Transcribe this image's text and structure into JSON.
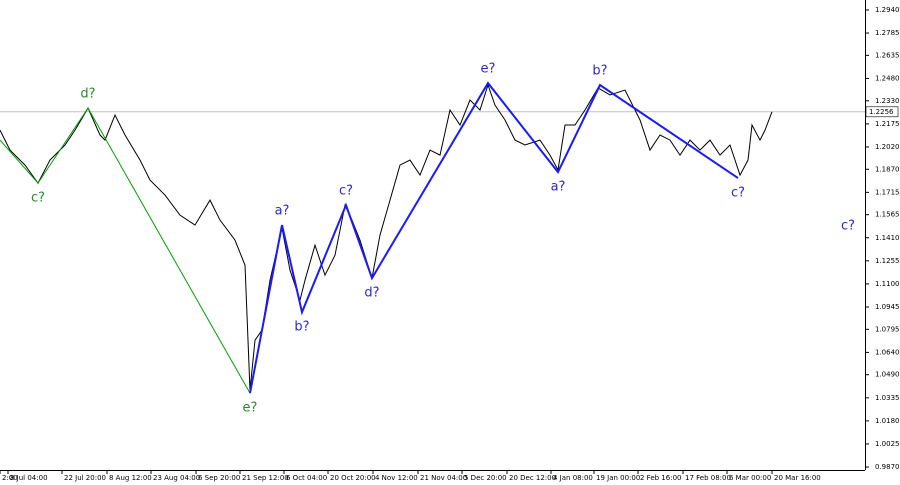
{
  "chart_data": {
    "type": "line",
    "xlim": [
      0,
      865
    ],
    "ylim": [
      0.985,
      1.3007
    ],
    "xticks": [
      {
        "value": 0,
        "label": "2:00"
      },
      {
        "value": 8,
        "label": "8 Jul 04:00"
      },
      {
        "value": 62,
        "label": "22 Jul 20:00"
      },
      {
        "value": 107,
        "label": "8 Aug 12:00"
      },
      {
        "value": 151,
        "label": "23 Aug 04:00"
      },
      {
        "value": 196,
        "label": "6 Sep 20:00"
      },
      {
        "value": 240,
        "label": "21 Sep 12:00"
      },
      {
        "value": 284,
        "label": "6 Oct 04:00"
      },
      {
        "value": 328,
        "label": "20 Oct 20:00"
      },
      {
        "value": 373,
        "label": "4 Nov 12:00"
      },
      {
        "value": 418,
        "label": "21 Nov 04:00"
      },
      {
        "value": 462,
        "label": "5 Dec 20:00"
      },
      {
        "value": 507,
        "label": "20 Dec 12:00"
      },
      {
        "value": 551,
        "label": "4 Jan 08:00"
      },
      {
        "value": 594,
        "label": "19 Jan 00:00"
      },
      {
        "value": 638,
        "label": "2 Feb 16:00"
      },
      {
        "value": 683,
        "label": "17 Feb 08:00"
      },
      {
        "value": 727,
        "label": "6 Mar 00:00"
      },
      {
        "value": 772,
        "label": "20 Mar 16:00"
      }
    ],
    "yticks": [
      {
        "value": 1.294,
        "label": "1.2940"
      },
      {
        "value": 1.2785,
        "label": "1.2785"
      },
      {
        "value": 1.2635,
        "label": "1.2635"
      },
      {
        "value": 1.248,
        "label": "1.2480"
      },
      {
        "value": 1.233,
        "label": "1.2330"
      },
      {
        "value": 1.2175,
        "label": "1.2175"
      },
      {
        "value": 1.202,
        "label": "1.2020"
      },
      {
        "value": 1.187,
        "label": "1.1870"
      },
      {
        "value": 1.1715,
        "label": "1.1715"
      },
      {
        "value": 1.1565,
        "label": "1.1565"
      },
      {
        "value": 1.141,
        "label": "1.1410"
      },
      {
        "value": 1.1255,
        "label": "1.1255"
      },
      {
        "value": 1.11,
        "label": "1.1100"
      },
      {
        "value": 1.0945,
        "label": "1.0945"
      },
      {
        "value": 1.0795,
        "label": "1.0795"
      },
      {
        "value": 1.064,
        "label": "1.0640"
      },
      {
        "value": 1.049,
        "label": "1.0490"
      },
      {
        "value": 1.0335,
        "label": "1.0335"
      },
      {
        "value": 1.018,
        "label": "1.0180"
      },
      {
        "value": 1.0025,
        "label": "1.0025"
      },
      {
        "value": 0.987,
        "label": "0.9870"
      }
    ],
    "current_price": {
      "value": 1.2256,
      "label": "1.2256"
    },
    "series": [
      {
        "color": "#000000",
        "x": [
          0,
          10,
          25,
          38,
          50,
          65,
          75,
          88,
          100,
          105,
          115,
          125,
          140,
          150,
          165,
          180,
          195,
          210,
          220,
          235,
          245,
          250,
          255,
          262,
          270,
          282,
          290,
          300,
          305,
          315,
          325,
          335,
          345,
          352,
          360,
          372,
          380,
          390,
          400,
          410,
          420,
          430,
          440,
          450,
          460,
          470,
          480,
          488,
          495,
          505,
          515,
          525,
          540,
          550,
          558,
          565,
          575,
          585,
          598,
          610,
          625,
          640,
          650,
          660,
          670,
          680,
          690,
          700,
          710,
          720,
          730,
          740,
          748,
          752,
          760,
          765,
          772
        ],
        "values": [
          1.2133,
          1.1999,
          1.1898,
          1.1777,
          1.1932,
          1.2033,
          1.2133,
          1.2281,
          1.21,
          1.2066,
          1.2234,
          1.21,
          1.1932,
          1.1797,
          1.1697,
          1.1562,
          1.1495,
          1.1663,
          1.1529,
          1.1394,
          1.1226,
          1.0386,
          1.0722,
          1.0789,
          1.1125,
          1.1475,
          1.1192,
          1.0991,
          1.1125,
          1.136,
          1.1159,
          1.1293,
          1.1629,
          1.1529,
          1.1394,
          1.1139,
          1.1428,
          1.1663,
          1.1898,
          1.1932,
          1.1831,
          1.1999,
          1.1965,
          1.2268,
          1.2167,
          1.2335,
          1.2268,
          1.2436,
          1.2301,
          1.2201,
          1.2066,
          1.2033,
          1.2066,
          1.1965,
          1.1865,
          1.2167,
          1.2167,
          1.2268,
          1.2416,
          1.2369,
          1.2402,
          1.2201,
          1.1999,
          1.21,
          1.2066,
          1.1965,
          1.2066,
          1.1999,
          1.2066,
          1.1965,
          1.2033,
          1.1831,
          1.1932,
          1.2167,
          1.2066,
          1.2133,
          1.2256
        ]
      }
    ],
    "waves": [
      {
        "color": "#00a000",
        "label_color": "#2a8a2a",
        "x": [
          0,
          38,
          88,
          250
        ],
        "y": [
          1.2066,
          1.1777,
          1.2281,
          1.0366
        ],
        "labels": [
          null,
          "c?",
          "d?",
          "e?"
        ]
      },
      {
        "color": "#1a1aff",
        "label_color": "#2a2ad0",
        "x": [
          250,
          282,
          302,
          346,
          372,
          488,
          558,
          600,
          738
        ],
        "y": [
          1.0366,
          1.1495,
          1.091,
          1.1629,
          1.1139,
          1.2449,
          1.1851,
          1.2436,
          1.1811
        ],
        "labels": [
          null,
          "a?",
          "b?",
          "c?",
          "d?",
          "e?",
          "a?",
          "b?",
          "c?"
        ]
      }
    ],
    "annotations": [
      {
        "text": "c?",
        "x": 848,
        "y": 1.1488,
        "color": "#2a2ad0"
      }
    ]
  }
}
